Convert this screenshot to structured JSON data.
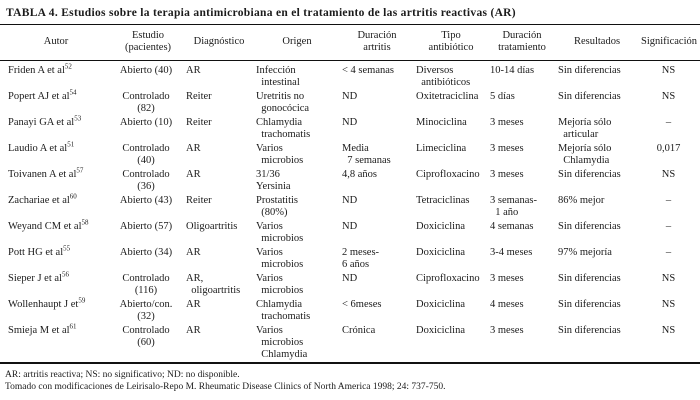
{
  "title": "TABLA 4. Estudios sobre la terapia antimicrobiana en el tratamiento de las artritis reactivas (AR)",
  "table": {
    "columns": [
      "Autor",
      "Estudio\n(pacientes)",
      "Diagnóstico",
      "Origen",
      "Duración\nartritis",
      "Tipo\nantibiótico",
      "Duración\ntratamiento",
      "Resultados",
      "Significación"
    ],
    "rows": [
      {
        "author": "Friden A et al",
        "ref": "52",
        "estudio": "Abierto (40)",
        "diagnostico": "AR",
        "origen": "Infección\n  intestinal",
        "duracion_artritis": "< 4 semanas",
        "tipo_antibiotico": "Diversos\n  antibióticos",
        "duracion_tratamiento": "10-14 días",
        "resultados": "Sin diferencias",
        "significacion": "NS"
      },
      {
        "author": "Popert AJ et al",
        "ref": "54",
        "estudio": "Controlado\n(82)",
        "diagnostico": "Reiter",
        "origen": "Uretritis no\n  gonocócica",
        "duracion_artritis": "ND",
        "tipo_antibiotico": "Oxitetraciclina",
        "duracion_tratamiento": "5 días",
        "resultados": "Sin diferencias",
        "significacion": "NS"
      },
      {
        "author": "Panayi GA et al",
        "ref": "53",
        "estudio": "Abierto (10)",
        "diagnostico": "Reiter",
        "origen": "Chlamydia\n  trachomatis",
        "duracion_artritis": "ND",
        "tipo_antibiotico": "Minociclina",
        "duracion_tratamiento": "3 meses",
        "resultados": "Mejoría sólo\n  articular",
        "significacion": "–"
      },
      {
        "author": "Laudio A et al",
        "ref": "51",
        "estudio": "Controlado\n(40)",
        "diagnostico": "AR",
        "origen": "Varios\n  microbios",
        "duracion_artritis": "Media\n  7 semanas",
        "tipo_antibiotico": "Limeciclina",
        "duracion_tratamiento": "3 meses",
        "resultados": "Mejoría sólo\n  Chlamydia",
        "significacion": "0,017"
      },
      {
        "author": "Toivanen A et al",
        "ref": "57",
        "estudio": "Controlado\n(36)",
        "diagnostico": "AR",
        "origen": "31/36\nYersinia",
        "duracion_artritis": "4,8 años",
        "tipo_antibiotico": "Ciprofloxacino",
        "duracion_tratamiento": "3 meses",
        "resultados": "Sin diferencias",
        "significacion": "NS"
      },
      {
        "author": "Zachariae et al",
        "ref": "60",
        "estudio": "Abierto (43)",
        "diagnostico": "Reiter",
        "origen": "Prostatitis\n  (80%)",
        "duracion_artritis": "ND",
        "tipo_antibiotico": "Tetraciclinas",
        "duracion_tratamiento": "3 semanas-\n  1 año",
        "resultados": "86% mejor",
        "significacion": "–"
      },
      {
        "author": "Weyand CM et al",
        "ref": "58",
        "estudio": "Abierto (57)",
        "diagnostico": "Oligoartritis",
        "origen": "Varios\n  microbios",
        "duracion_artritis": "ND",
        "tipo_antibiotico": "Doxiciclina",
        "duracion_tratamiento": "4 semanas",
        "resultados": "Sin diferencias",
        "significacion": "–"
      },
      {
        "author": "Pott HG et al",
        "ref": "55",
        "estudio": "Abierto (34)",
        "diagnostico": "AR",
        "origen": "Varios\n  microbios",
        "duracion_artritis": "2 meses-\n6 años",
        "tipo_antibiotico": "Doxiciclina",
        "duracion_tratamiento": "3-4 meses",
        "resultados": "97% mejoría",
        "significacion": "–"
      },
      {
        "author": "Sieper J et al",
        "ref": "56",
        "estudio": "Controlado\n(116)",
        "diagnostico": "AR,\n  oligoartritis",
        "origen": "Varios\n  microbios",
        "duracion_artritis": "ND",
        "tipo_antibiotico": "Ciprofloxacino",
        "duracion_tratamiento": "3 meses",
        "resultados": "Sin diferencias",
        "significacion": "NS"
      },
      {
        "author": "Wollenhaupt J et",
        "ref": "59",
        "estudio": "Abierto/con.\n(32)",
        "diagnostico": "AR",
        "origen": "Chlamydia\n  trachomatis",
        "duracion_artritis": "< 6meses",
        "tipo_antibiotico": "Doxiciclina",
        "duracion_tratamiento": "4 meses",
        "resultados": "Sin diferencias",
        "significacion": "NS"
      },
      {
        "author": "Smieja M et al",
        "ref": "61",
        "estudio": "Controlado\n(60)",
        "diagnostico": "AR",
        "origen": "Varios\n  microbios\n  Chlamydia",
        "duracion_artritis": "Crónica",
        "tipo_antibiotico": "Doxiciclina",
        "duracion_tratamiento": "3 meses",
        "resultados": "Sin diferencias",
        "significacion": "NS"
      }
    ]
  },
  "footnotes": [
    "AR: artritis reactiva; NS: no significativo; ND: no disponible.",
    "Tomado con modificaciones de Leirisalo-Repo M. Rheumatic Disease Clinics of North America 1998; 24: 737-750."
  ]
}
